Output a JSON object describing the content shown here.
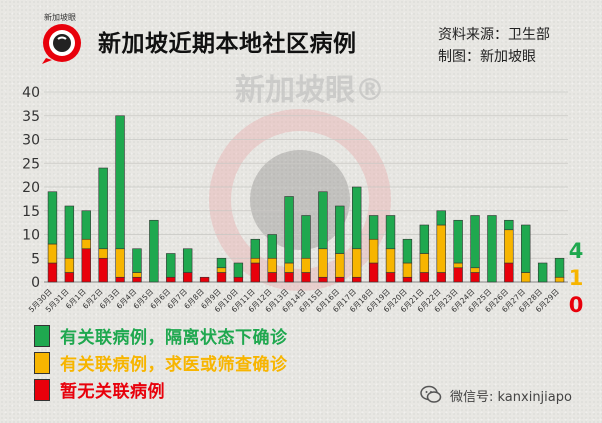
{
  "header": {
    "title": "新加坡近期本地社区病例",
    "source_line1": "资料来源：卫生部",
    "source_line2": "制图：新加坡眼",
    "logo_text": "新加坡眼",
    "watermark": "新加坡眼®"
  },
  "legend": [
    {
      "label": "有关联病例，隔离状态下确诊",
      "color": "#1fa84f",
      "text_color": "#1fa84f"
    },
    {
      "label": "有关联病例，求医或筛查确诊",
      "color": "#f7b500",
      "text_color": "#f7b500"
    },
    {
      "label": "暂无关联病例",
      "color": "#e8000b",
      "text_color": "#e8000b"
    }
  ],
  "today_counts": [
    {
      "value": "4",
      "color": "#1fa84f"
    },
    {
      "value": "1",
      "color": "#f7b500"
    },
    {
      "value": "0",
      "color": "#e8000b"
    }
  ],
  "footer": {
    "wechat_label": "微信号: kanxinjiapo",
    "icon": "wechat-icon"
  },
  "colors": {
    "green": "#1fa84f",
    "yellow": "#f7b500",
    "red": "#e8000b"
  },
  "chart_data": {
    "type": "bar",
    "stacked": true,
    "title": "新加坡近期本地社区病例",
    "ylim": [
      0,
      40
    ],
    "yticks": [
      0,
      5,
      10,
      15,
      20,
      25,
      30,
      35,
      40
    ],
    "categories": [
      "5月30日",
      "5月31日",
      "6月1日",
      "6月2日",
      "6月3日",
      "6月4日",
      "6月5日",
      "6月6日",
      "6月7日",
      "6月8日",
      "6月9日",
      "6月10日",
      "6月11日",
      "6月12日",
      "6月13日",
      "6月14日",
      "6月15日",
      "6月16日",
      "6月17日",
      "6月18日",
      "6月19日",
      "6月20日",
      "6月21日",
      "6月22日",
      "6月23日",
      "6月24日",
      "6月25日",
      "6月26日",
      "6月27日",
      "6月28日",
      "6月29日"
    ],
    "series": [
      {
        "name": "暂无关联病例",
        "color": "#e8000b",
        "values": [
          4,
          2,
          7,
          5,
          1,
          1,
          0,
          1,
          2,
          1,
          2,
          1,
          4,
          2,
          2,
          2,
          1,
          1,
          1,
          4,
          2,
          1,
          2,
          2,
          3,
          2,
          0,
          4,
          0,
          0,
          0
        ]
      },
      {
        "name": "有关联病例，求医或筛查确诊",
        "color": "#f7b500",
        "values": [
          4,
          3,
          2,
          2,
          6,
          1,
          0,
          0,
          0,
          0,
          1,
          0,
          1,
          3,
          2,
          3,
          6,
          5,
          6,
          5,
          5,
          3,
          4,
          10,
          1,
          1,
          0,
          7,
          2,
          0,
          1
        ]
      },
      {
        "name": "有关联病例，隔离状态下确诊",
        "color": "#1fa84f",
        "values": [
          11,
          11,
          6,
          17,
          28,
          5,
          13,
          5,
          5,
          0,
          2,
          3,
          4,
          5,
          14,
          9,
          12,
          10,
          13,
          5,
          7,
          5,
          6,
          3,
          9,
          11,
          14,
          2,
          10,
          4,
          4
        ]
      }
    ]
  }
}
